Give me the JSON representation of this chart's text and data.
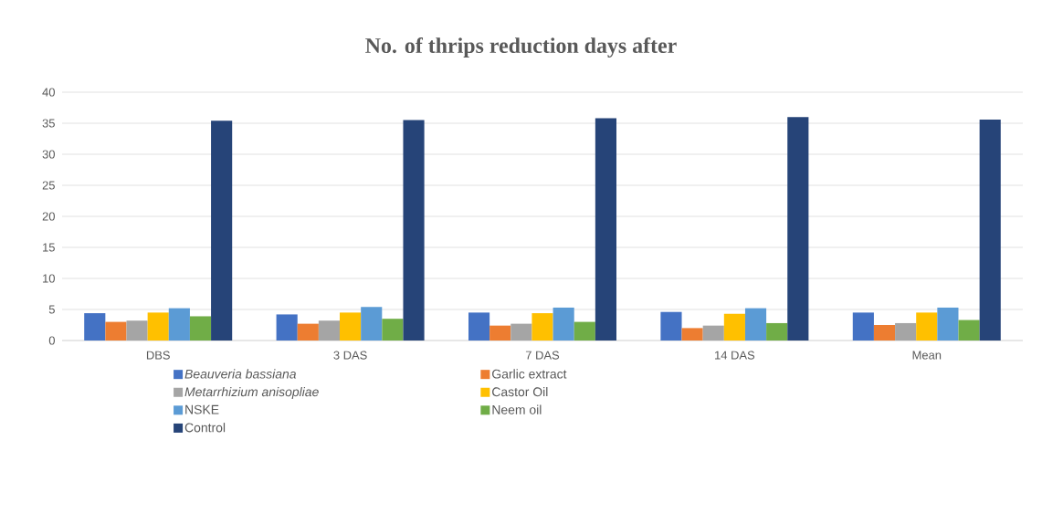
{
  "chart_data": {
    "type": "bar",
    "title": "No. of thrips reduction days after",
    "categories": [
      "DBS",
      "3 DAS",
      "7 DAS",
      "14 DAS",
      "Mean"
    ],
    "series": [
      {
        "name": "*Beauveria bassiana*",
        "color": "#4472c4",
        "values": [
          4.4,
          4.2,
          4.5,
          4.6,
          4.5
        ]
      },
      {
        "name": "Garlic extract",
        "color": "#ed7d31",
        "values": [
          3.0,
          2.7,
          2.4,
          2.0,
          2.5
        ]
      },
      {
        "name": "*Metarrhizium anisopliae*",
        "color": "#a5a5a5",
        "values": [
          3.2,
          3.2,
          2.7,
          2.4,
          2.8
        ]
      },
      {
        "name": "Castor Oil",
        "color": "#ffc000",
        "values": [
          4.5,
          4.5,
          4.4,
          4.3,
          4.5
        ]
      },
      {
        "name": "NSKE",
        "color": "#5b9bd5",
        "values": [
          5.2,
          5.4,
          5.3,
          5.2,
          5.3
        ]
      },
      {
        "name": "Neem oil",
        "color": "#70ad47",
        "values": [
          3.9,
          3.5,
          3.0,
          2.8,
          3.3
        ]
      },
      {
        "name": "Control",
        "color": "#264478",
        "values": [
          35.4,
          35.5,
          35.8,
          36.0,
          35.6
        ]
      }
    ],
    "ylim": [
      0,
      40
    ],
    "yticks": [
      0,
      5,
      10,
      15,
      20,
      25,
      30,
      35,
      40
    ],
    "grid": "y",
    "legend": "bottom"
  }
}
